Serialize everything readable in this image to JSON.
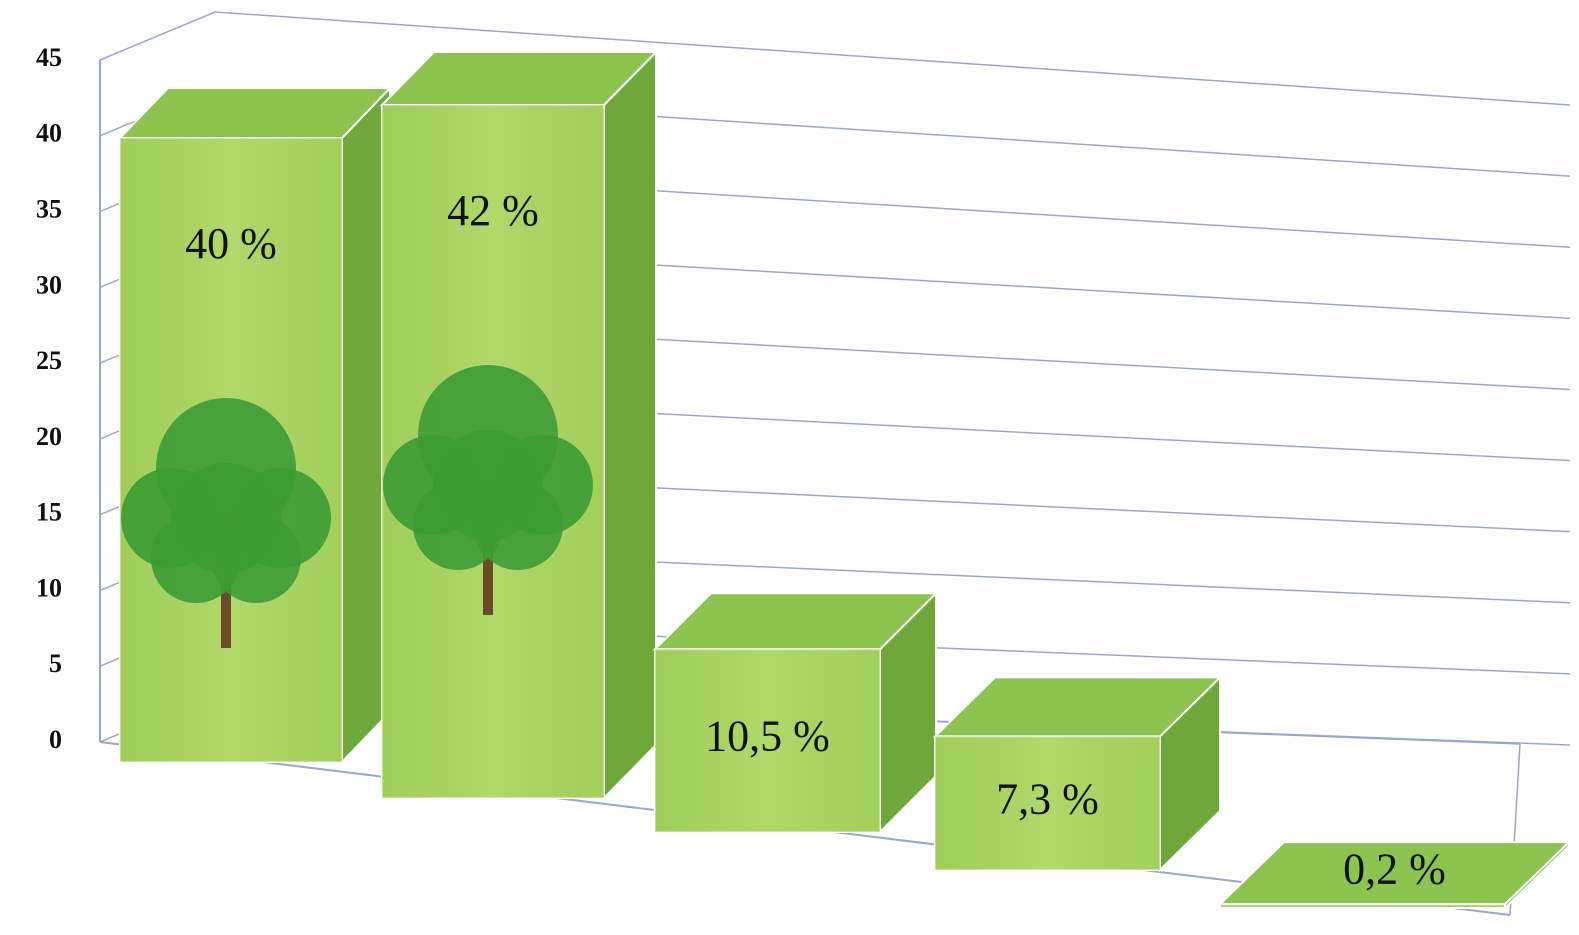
{
  "chart_data": {
    "type": "bar3d",
    "values": [
      40,
      42,
      10.5,
      7.3,
      0.2
    ],
    "value_labels": [
      "40 %",
      "42 %",
      "10,5 %",
      "7,3 %",
      "0,2 %"
    ],
    "color": "#a6d160",
    "ylim": [
      0,
      45
    ],
    "yticks": [
      0,
      5,
      10,
      15,
      20,
      25,
      30,
      35,
      40,
      45
    ],
    "grid": true
  }
}
